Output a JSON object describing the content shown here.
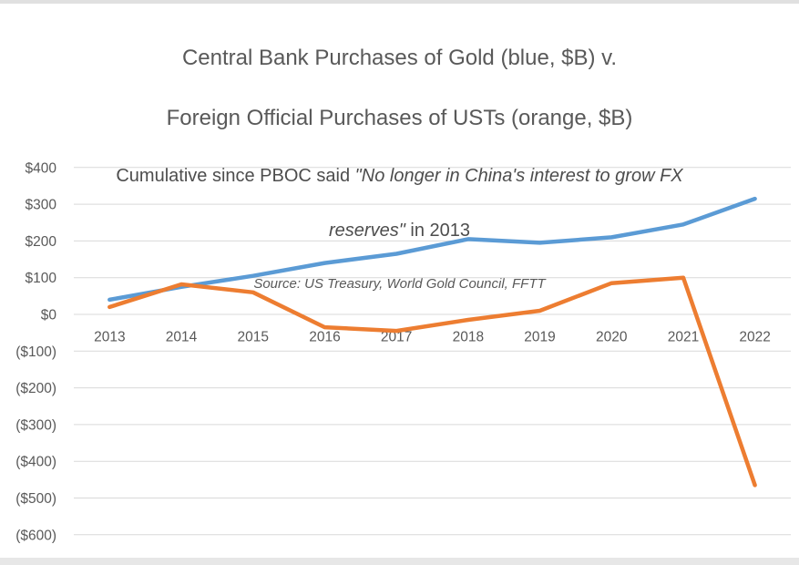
{
  "title": {
    "line1": "Central Bank Purchases of Gold (blue, $B) v.",
    "line2": "Foreign Official Purchases of USTs (orange, $B)"
  },
  "subtitle": {
    "prefix": "Cumulative since PBOC said ",
    "quote_line1": "\"No longer in China's interest to grow FX",
    "quote_line2": "reserves\"",
    "suffix": " in 2013"
  },
  "source": "Source: US Treasury, World Gold Council, FFTT",
  "chart_data": {
    "type": "line",
    "categories": [
      "2013",
      "2014",
      "2015",
      "2016",
      "2017",
      "2018",
      "2019",
      "2020",
      "2021",
      "2022"
    ],
    "series": [
      {
        "name": "Central Bank Purchases of Gold (blue, $B, cumulative)",
        "color": "#5B9BD5",
        "values": [
          40,
          75,
          105,
          140,
          165,
          205,
          195,
          210,
          245,
          315
        ]
      },
      {
        "name": "Foreign Official Purchases of USTs (orange, $B, cumulative)",
        "color": "#ED7D31",
        "values": [
          20,
          82,
          60,
          -35,
          -45,
          -15,
          10,
          85,
          100,
          -465
        ]
      }
    ],
    "y_ticks": [
      {
        "value": 400,
        "label": "$400"
      },
      {
        "value": 300,
        "label": "$300"
      },
      {
        "value": 200,
        "label": "$200"
      },
      {
        "value": 100,
        "label": "$100"
      },
      {
        "value": 0,
        "label": "$0"
      },
      {
        "value": -100,
        "label": "($100)"
      },
      {
        "value": -200,
        "label": "($200)"
      },
      {
        "value": -300,
        "label": "($300)"
      },
      {
        "value": -400,
        "label": "($400)"
      },
      {
        "value": -500,
        "label": "($500)"
      },
      {
        "value": -600,
        "label": "($600)"
      }
    ],
    "ylim": [
      -600,
      400
    ],
    "grid": true,
    "legend_position": "none",
    "gridline_color": "#d9d9d9",
    "axis_label_color": "#595959",
    "line_width": 4.5
  }
}
